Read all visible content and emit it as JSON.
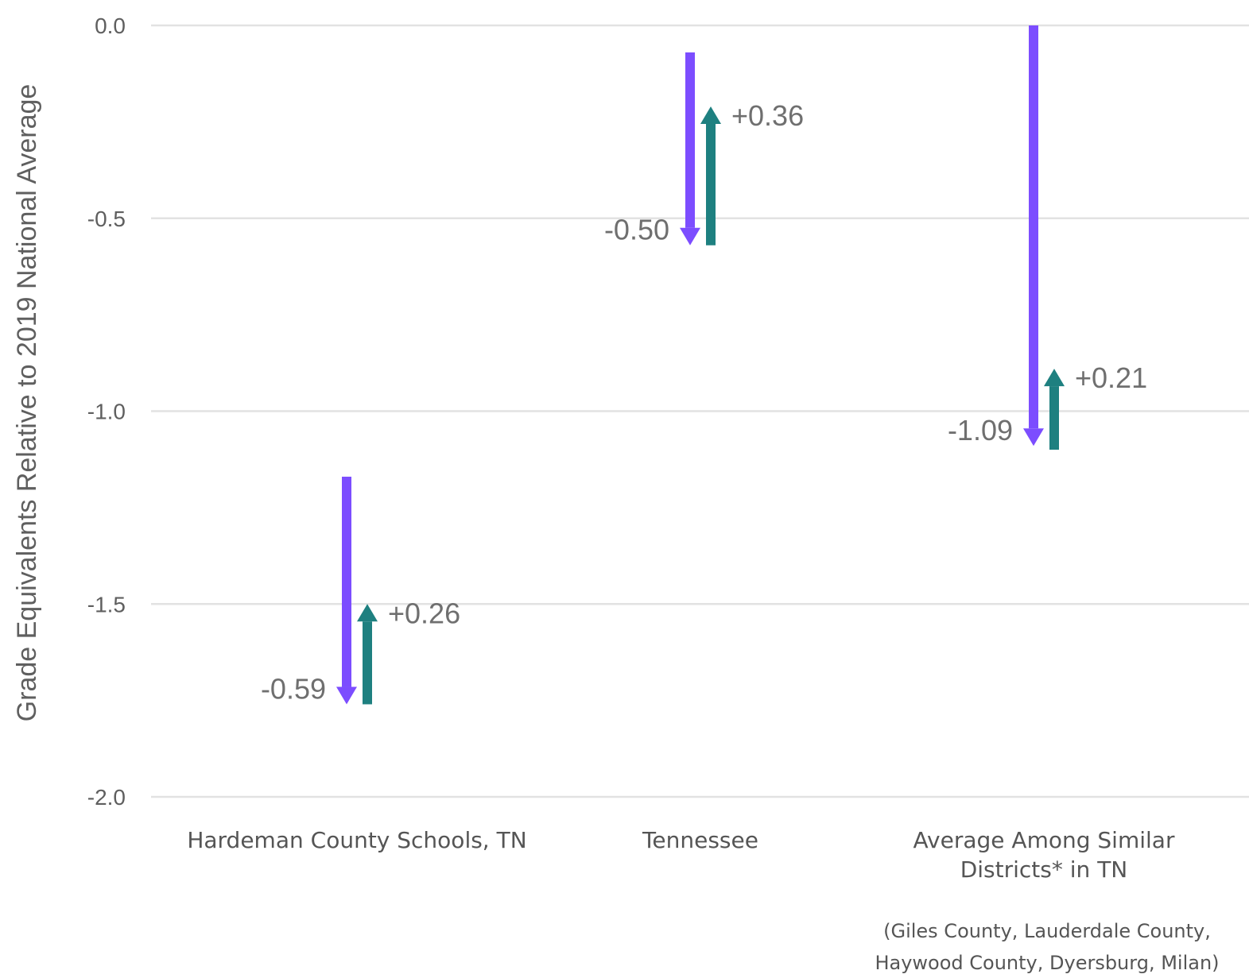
{
  "chart_data": {
    "type": "arrow",
    "ylabel": "Grade Equivalents Relative to 2019 National Average",
    "ylim": [
      -2.0,
      0.0
    ],
    "yticks": [
      0.0,
      -0.5,
      -1.0,
      -1.5,
      -2.0
    ],
    "ytick_labels": [
      "0.0",
      "-0.5",
      "-1.0",
      "-1.5",
      "-2.0"
    ],
    "grid": true,
    "categories": [
      {
        "lines": [
          "Hardeman County Schools, TN"
        ]
      },
      {
        "lines": [
          "Tennessee"
        ]
      },
      {
        "lines": [
          "Average Among Similar",
          "Districts* in TN"
        ]
      }
    ],
    "series": [
      {
        "color": "#7c4dff",
        "direction": "down",
        "points": [
          {
            "start": -1.17,
            "end": -1.76,
            "label": "-0.59"
          },
          {
            "start": -0.07,
            "end": -0.57,
            "label": "-0.50"
          },
          {
            "start": 0.0,
            "end": -1.09,
            "label": "-1.09"
          }
        ]
      },
      {
        "color": "#1e8080",
        "direction": "up",
        "points": [
          {
            "start": -1.76,
            "end": -1.5,
            "label": "+0.26"
          },
          {
            "start": -0.57,
            "end": -0.21,
            "label": "+0.36"
          },
          {
            "start": -1.1,
            "end": -0.89,
            "label": "+0.21"
          }
        ]
      }
    ],
    "footnote": [
      "(Giles County, Lauderdale County,",
      "Haywood County, Dyersburg, Milan)"
    ],
    "colors": {
      "grid": "#e2e2e2",
      "text": "#5f5f5f"
    }
  }
}
